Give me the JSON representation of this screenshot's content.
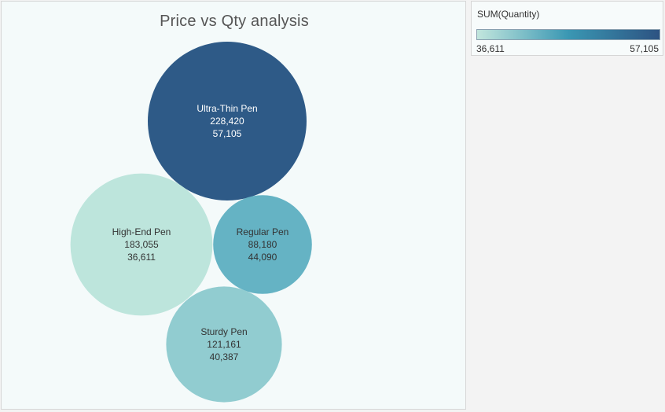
{
  "legend": {
    "title": "SUM(Quantity)",
    "min_label": "36,611",
    "max_label": "57,105",
    "min_color": "#c2e6dd",
    "mid_color": "#3a97b3",
    "max_color": "#2d5382"
  },
  "chart_data": {
    "type": "bubble",
    "title": "Price vs Qty analysis",
    "size_measure": "Price",
    "color_measure": "SUM(Quantity)",
    "bubbles": [
      {
        "name": "Ultra-Thin Pen",
        "price": 228420,
        "price_label": "228,420",
        "quantity": 57105,
        "quantity_label": "57,105",
        "color": "#2e5a87"
      },
      {
        "name": "High-End Pen",
        "price": 183055,
        "price_label": "183,055",
        "quantity": 36611,
        "quantity_label": "36,611",
        "color": "#bde5dc"
      },
      {
        "name": "Regular Pen",
        "price": 88180,
        "price_label": "88,180",
        "quantity": 44090,
        "quantity_label": "44,090",
        "color": "#65b3c4"
      },
      {
        "name": "Sturdy Pen",
        "price": 121161,
        "price_label": "121,161",
        "quantity": 40387,
        "quantity_label": "40,387",
        "color": "#91ccd0"
      }
    ]
  }
}
